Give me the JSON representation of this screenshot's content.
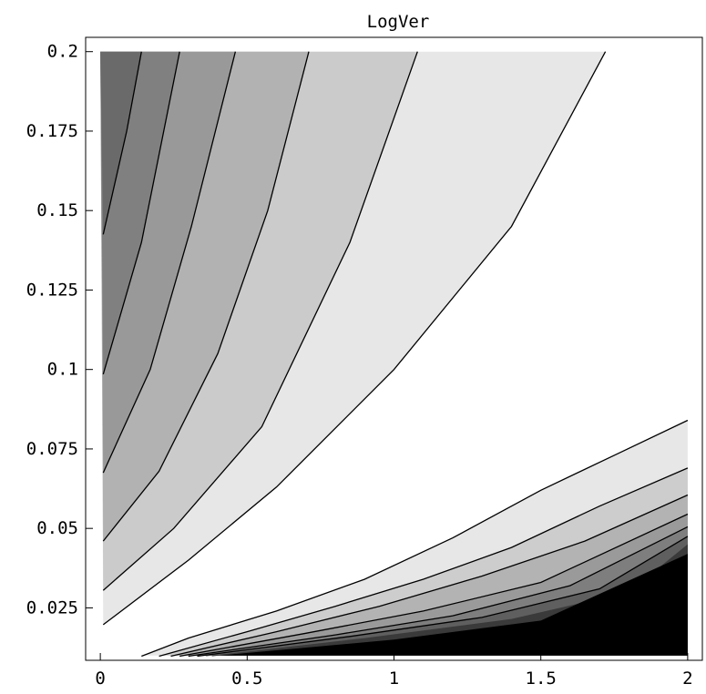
{
  "chart_data": {
    "type": "contour",
    "title": "LogVer",
    "xlabel": "",
    "ylabel": "",
    "xlim": [
      0,
      2
    ],
    "ylim": [
      0.01,
      0.2
    ],
    "plot_range": [
      -0.05,
      2.05,
      0.0085,
      0.2045
    ],
    "x_ticks": [
      0,
      0.5,
      1,
      1.5,
      2
    ],
    "x_tick_labels": [
      "0",
      "0.5",
      "1",
      "1.5",
      "2"
    ],
    "y_ticks": [
      0.025,
      0.05,
      0.075,
      0.1,
      0.125,
      0.15,
      0.175,
      0.2
    ],
    "y_tick_labels": [
      "0.025",
      "0.05",
      "0.075",
      "0.1",
      "0.125",
      "0.15",
      "0.175",
      "0.2"
    ],
    "grid": false,
    "legend": "none",
    "colors": {
      "background": "#ffffff",
      "frame": "#000000",
      "contour_line": "#000000"
    },
    "upper_contours": [
      {
        "points": [
          [
            0.01,
            0.0197
          ],
          [
            0.3,
            0.04
          ],
          [
            0.6,
            0.063
          ],
          [
            1.0,
            0.1
          ],
          [
            1.4,
            0.145
          ],
          [
            1.72,
            0.2
          ]
        ]
      },
      {
        "points": [
          [
            0.01,
            0.0305
          ],
          [
            0.25,
            0.05
          ],
          [
            0.55,
            0.082
          ],
          [
            0.85,
            0.14
          ],
          [
            1.08,
            0.2
          ]
        ]
      },
      {
        "points": [
          [
            0.01,
            0.046
          ],
          [
            0.2,
            0.068
          ],
          [
            0.4,
            0.105
          ],
          [
            0.57,
            0.15
          ],
          [
            0.71,
            0.2
          ]
        ]
      },
      {
        "points": [
          [
            0.01,
            0.0675
          ],
          [
            0.17,
            0.1
          ],
          [
            0.31,
            0.145
          ],
          [
            0.46,
            0.2
          ]
        ]
      },
      {
        "points": [
          [
            0.01,
            0.0985
          ],
          [
            0.14,
            0.14
          ],
          [
            0.27,
            0.2
          ]
        ]
      },
      {
        "points": [
          [
            0.01,
            0.1425
          ],
          [
            0.09,
            0.175
          ],
          [
            0.14,
            0.2
          ]
        ]
      }
    ],
    "upper_fills": [
      "#e7e7e7",
      "#cbcbcb",
      "#b2b2b2",
      "#999999",
      "#808080",
      "#6a6a6a"
    ],
    "lower_contours": [
      {
        "points": [
          [
            0.14,
            0.0098
          ],
          [
            0.3,
            0.0155
          ],
          [
            0.6,
            0.024
          ],
          [
            0.9,
            0.034
          ],
          [
            1.2,
            0.047
          ],
          [
            1.5,
            0.062
          ],
          [
            1.75,
            0.073
          ],
          [
            2.0,
            0.084
          ]
        ]
      },
      {
        "points": [
          [
            0.2,
            0.0098
          ],
          [
            0.5,
            0.0175
          ],
          [
            0.8,
            0.0255
          ],
          [
            1.1,
            0.034
          ],
          [
            1.4,
            0.044
          ],
          [
            1.7,
            0.057
          ],
          [
            2.0,
            0.069
          ]
        ]
      },
      {
        "points": [
          [
            0.24,
            0.0098
          ],
          [
            0.6,
            0.0175
          ],
          [
            0.95,
            0.0255
          ],
          [
            1.3,
            0.035
          ],
          [
            1.65,
            0.046
          ],
          [
            2.0,
            0.0605
          ]
        ]
      },
      {
        "points": [
          [
            0.27,
            0.0098
          ],
          [
            0.7,
            0.017
          ],
          [
            1.1,
            0.024
          ],
          [
            1.5,
            0.033
          ],
          [
            2.0,
            0.0545
          ]
        ]
      },
      {
        "points": [
          [
            0.3,
            0.0098
          ],
          [
            0.8,
            0.0165
          ],
          [
            1.2,
            0.0225
          ],
          [
            1.6,
            0.032
          ],
          [
            2.0,
            0.0505
          ]
        ]
      },
      {
        "points": [
          [
            0.33,
            0.0098
          ],
          [
            0.85,
            0.016
          ],
          [
            1.3,
            0.022
          ],
          [
            1.7,
            0.031
          ],
          [
            2.0,
            0.0475
          ]
        ]
      },
      {
        "points": [
          [
            0.36,
            0.0098
          ],
          [
            0.9,
            0.0155
          ],
          [
            1.4,
            0.0215
          ],
          [
            1.8,
            0.03
          ],
          [
            2.0,
            0.045
          ]
        ]
      },
      {
        "points": [
          [
            0.38,
            0.0098
          ],
          [
            1.0,
            0.015
          ],
          [
            1.5,
            0.021
          ],
          [
            2.0,
            0.042
          ]
        ]
      }
    ],
    "lower_fills": [
      "#e7e7e7",
      "#cdcdcd",
      "#b3b3b3",
      "#9a9a9a",
      "#7e7e7e",
      "#5f5f5f",
      "#3a3a3a",
      "#000000"
    ]
  }
}
